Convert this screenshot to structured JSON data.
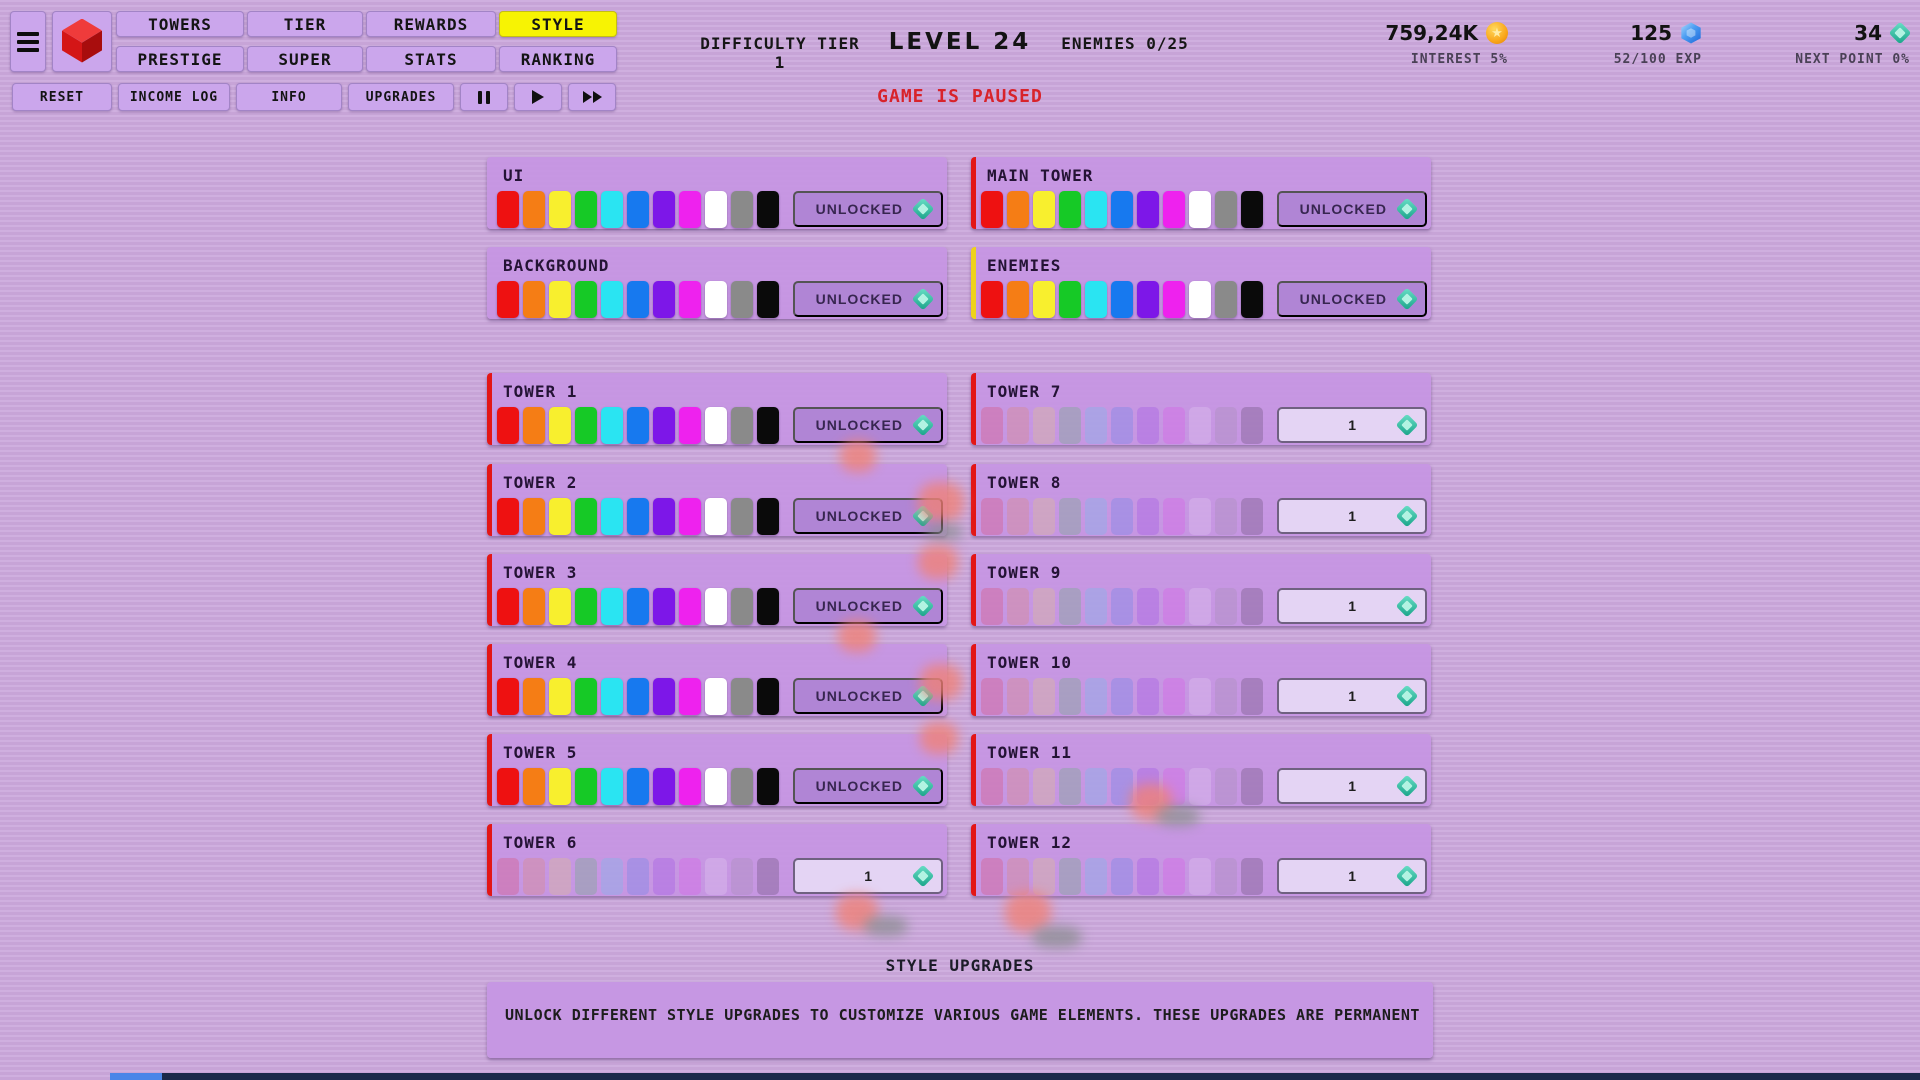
{
  "nav": {
    "tabs_row1": [
      "TOWERS",
      "TIER",
      "REWARDS",
      "STYLE"
    ],
    "tabs_row2": [
      "PRESTIGE",
      "SUPER",
      "STATS",
      "RANKING"
    ],
    "active_tab": "STYLE"
  },
  "toolbar": {
    "buttons": [
      "RESET",
      "INCOME LOG",
      "INFO",
      "UPGRADES"
    ],
    "media": [
      "pause",
      "play",
      "fast-forward"
    ]
  },
  "status": {
    "difficulty": "DIFFICULTY TIER 1",
    "level": "LEVEL 24",
    "enemies": "ENEMIES 0/25",
    "paused_banner": "GAME IS PAUSED"
  },
  "stats": [
    {
      "value": "759,24K",
      "icon": "coin-icon",
      "label": "INTEREST 5%"
    },
    {
      "value": "125",
      "icon": "gem-icon",
      "label": "52/100 EXP"
    },
    {
      "value": "34",
      "icon": "style-point-icon",
      "label": "NEXT POINT 0%"
    }
  ],
  "style_panel": {
    "swatch_colors": [
      "#ee1111",
      "#f57d15",
      "#f8ef2e",
      "#16c926",
      "#2ae4f2",
      "#1779ef",
      "#7d17e8",
      "#ee22ee",
      "#ffffff",
      "#8a8a8a",
      "#0a0a0a"
    ],
    "cards_left": [
      {
        "name": "UI",
        "bar": null,
        "locked": false,
        "button_label": "UNLOCKED"
      },
      {
        "name": "BACKGROUND",
        "bar": null,
        "locked": false,
        "button_label": "UNLOCKED"
      },
      {
        "name": "TOWER 1",
        "bar": "red",
        "locked": false,
        "button_label": "UNLOCKED"
      },
      {
        "name": "TOWER 2",
        "bar": "red",
        "locked": false,
        "button_label": "UNLOCKED"
      },
      {
        "name": "TOWER 3",
        "bar": "red",
        "locked": false,
        "button_label": "UNLOCKED"
      },
      {
        "name": "TOWER 4",
        "bar": "red",
        "locked": false,
        "button_label": "UNLOCKED"
      },
      {
        "name": "TOWER 5",
        "bar": "red",
        "locked": false,
        "button_label": "UNLOCKED"
      },
      {
        "name": "TOWER 6",
        "bar": "red",
        "locked": true,
        "button_label": "1"
      }
    ],
    "cards_right": [
      {
        "name": "MAIN TOWER",
        "bar": "red",
        "locked": false,
        "button_label": "UNLOCKED"
      },
      {
        "name": "ENEMIES",
        "bar": "yellow",
        "locked": false,
        "button_label": "UNLOCKED"
      },
      {
        "name": "TOWER 7",
        "bar": "red",
        "locked": true,
        "button_label": "1"
      },
      {
        "name": "TOWER 8",
        "bar": "red",
        "locked": true,
        "button_label": "1"
      },
      {
        "name": "TOWER 9",
        "bar": "red",
        "locked": true,
        "button_label": "1"
      },
      {
        "name": "TOWER 10",
        "bar": "red",
        "locked": true,
        "button_label": "1"
      },
      {
        "name": "TOWER 11",
        "bar": "red",
        "locked": true,
        "button_label": "1"
      },
      {
        "name": "TOWER 12",
        "bar": "red",
        "locked": true,
        "button_label": "1"
      }
    ],
    "footer_title": "STYLE UPGRADES",
    "footer_description": "UNLOCK DIFFERENT STYLE UPGRADES TO CUSTOMIZE VARIOUS GAME ELEMENTS. THESE UPGRADES ARE PERMANENT"
  },
  "colors": {
    "accent_yellow": "#f7f303",
    "bar_red": "#e31616",
    "bar_yellow": "#eed21b",
    "paused_red": "#d8232b",
    "style_point_teal": "#18a388"
  }
}
